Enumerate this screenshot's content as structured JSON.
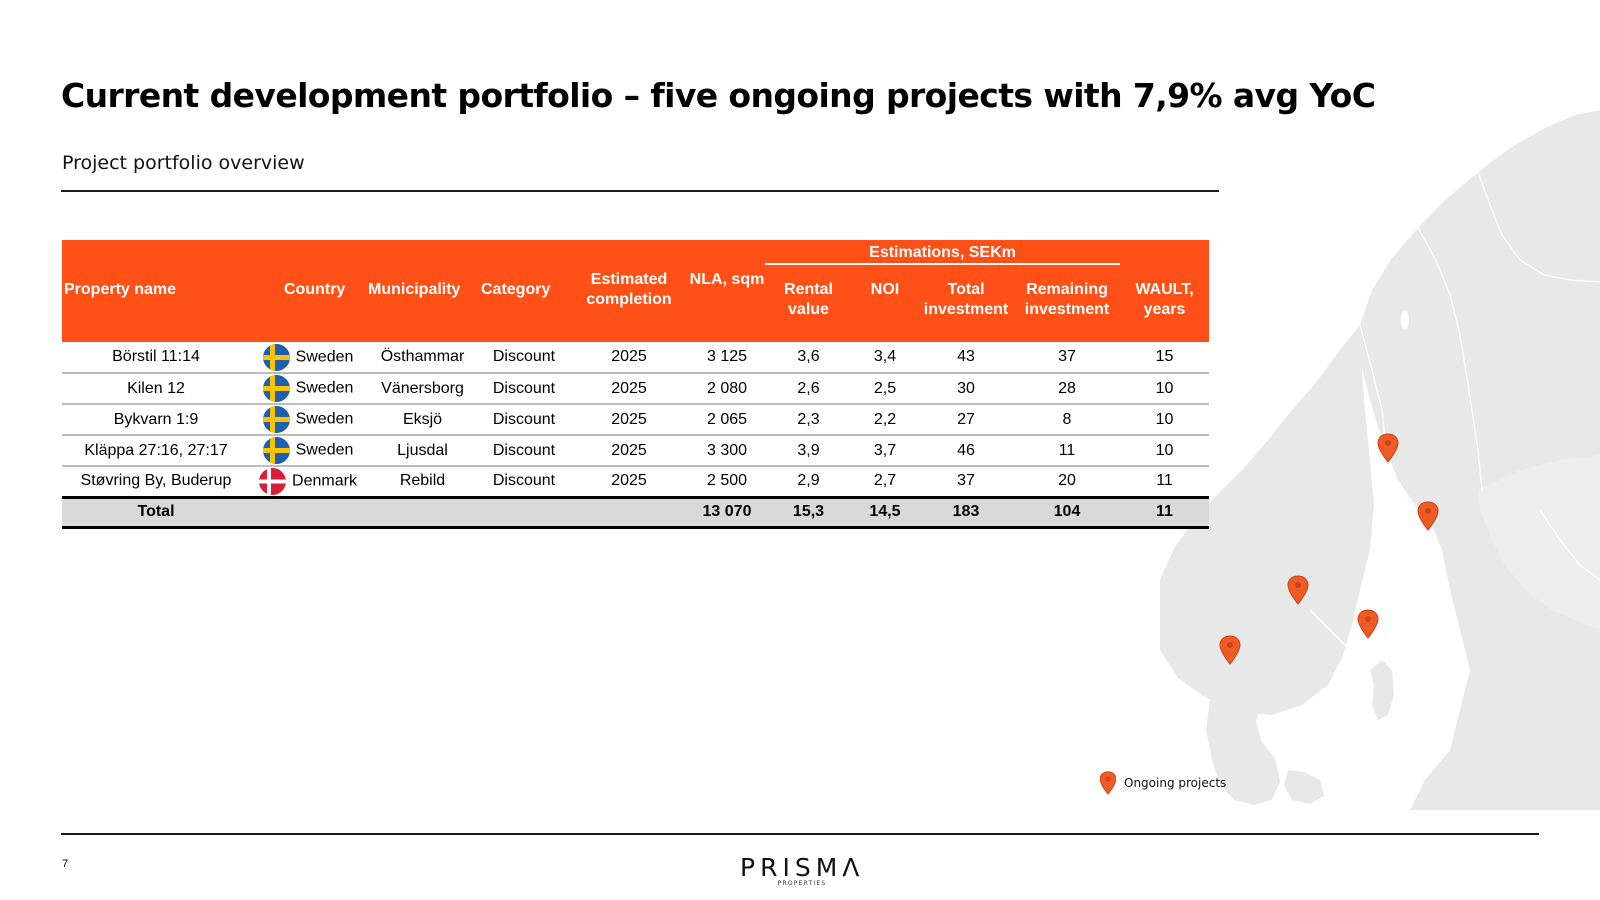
{
  "title": "Current development portfolio – five ongoing projects with 7,9% avg YoC",
  "subtitle": "Project portfolio overview",
  "table": {
    "estimations_group": "Estimations, SEKm",
    "headers": {
      "property": "Property name",
      "country": "Country",
      "municipality": "Municipality",
      "category": "Category",
      "completion": "Estimated completion",
      "nla": "NLA, sqm",
      "rental": "Rental value",
      "noi": "NOI",
      "total_inv": "Total investment",
      "remaining_inv": "Remaining investment",
      "wault": "WAULT, years"
    },
    "rows": [
      {
        "property": "Börstil 11:14",
        "flag": "sweden-flag",
        "country": "Sweden",
        "municipality": "Östhammar",
        "category": "Discount",
        "completion": "2025",
        "nla": "3 125",
        "rental": "3,6",
        "noi": "3,4",
        "total_inv": "43",
        "remaining_inv": "37",
        "wault": "15"
      },
      {
        "property": "Kilen 12",
        "flag": "sweden-flag",
        "country": "Sweden",
        "municipality": "Vänersborg",
        "category": "Discount",
        "completion": "2025",
        "nla": "2 080",
        "rental": "2,6",
        "noi": "2,5",
        "total_inv": "30",
        "remaining_inv": "28",
        "wault": "10"
      },
      {
        "property": "Bykvarn 1:9",
        "flag": "sweden-flag",
        "country": "Sweden",
        "municipality": "Eksjö",
        "category": "Discount",
        "completion": "2025",
        "nla": "2 065",
        "rental": "2,3",
        "noi": "2,2",
        "total_inv": "27",
        "remaining_inv": "8",
        "wault": "10"
      },
      {
        "property": "Kläppa 27:16, 27:17",
        "flag": "sweden-flag",
        "country": "Sweden",
        "municipality": "Ljusdal",
        "category": "Discount",
        "completion": "2025",
        "nla": "3 300",
        "rental": "3,9",
        "noi": "3,7",
        "total_inv": "46",
        "remaining_inv": "11",
        "wault": "10"
      },
      {
        "property": "Støvring By, Buderup",
        "flag": "denmark-flag",
        "country": "Denmark",
        "municipality": "Rebild",
        "category": "Discount",
        "completion": "2025",
        "nla": "2 500",
        "rental": "2,9",
        "noi": "2,7",
        "total_inv": "37",
        "remaining_inv": "20",
        "wault": "11"
      }
    ],
    "total": {
      "label": "Total",
      "nla": "13 070",
      "rental": "15,3",
      "noi": "14,5",
      "total_inv": "183",
      "remaining_inv": "104",
      "wault": "11"
    }
  },
  "legend": {
    "label": "Ongoing projects",
    "icon": "map-pin-icon"
  },
  "colors": {
    "accent": "#FF5018",
    "map_land": "#e6e6e6",
    "pin": "#F05A24"
  },
  "footer": {
    "page_number": "7",
    "logo_text": "PRISMΛ",
    "logo_sub": "PROPERTIES"
  }
}
